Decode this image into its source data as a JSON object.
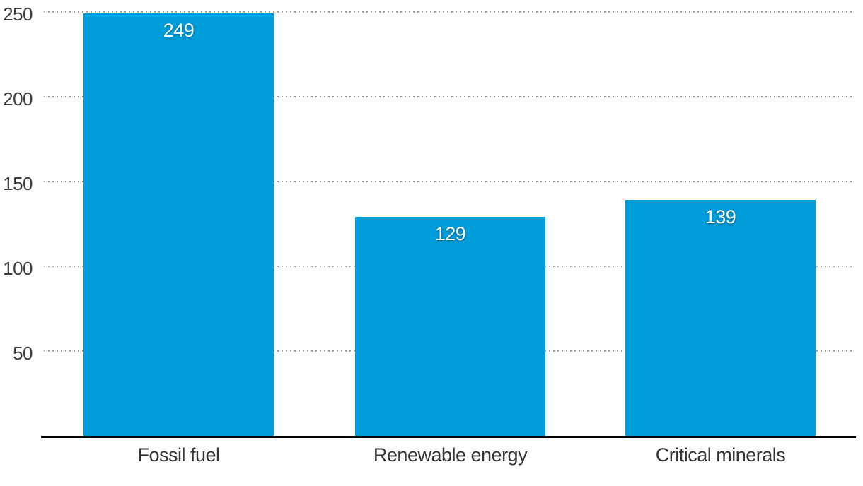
{
  "chart_data": {
    "type": "bar",
    "title": "",
    "xlabel": "",
    "ylabel": "",
    "categories": [
      "Fossil fuel",
      "Renewable energy",
      "Critical minerals"
    ],
    "values": [
      249,
      129,
      139
    ],
    "ylim": [
      0,
      250
    ],
    "y_ticks": [
      50,
      100,
      150,
      200,
      250
    ],
    "grid": "horizontal dotted gridlines, no vertical grid",
    "legend": "none",
    "colors": {
      "bar": "#009ddb",
      "value_label": "#ffffff",
      "tick_label": "#3d3d3d",
      "category_label": "#333333",
      "gridline": "#a3a3a3",
      "axis_line": "#000000",
      "background": "#ffffff"
    }
  }
}
